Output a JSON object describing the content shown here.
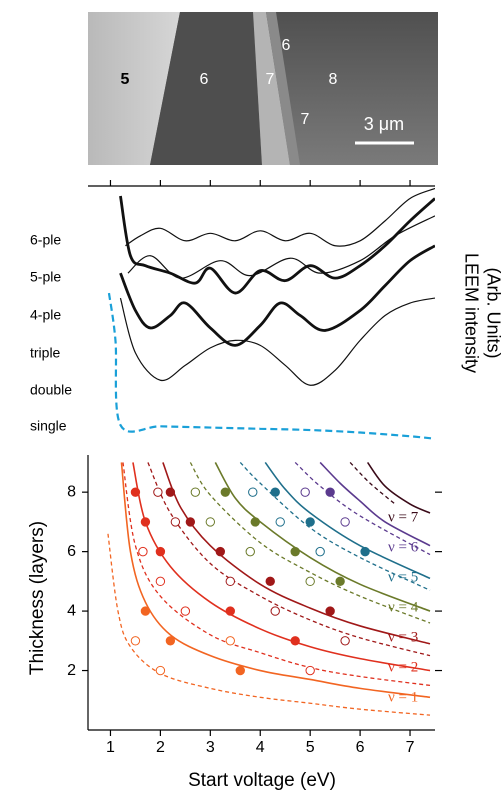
{
  "image": {
    "region_labels": [
      "5",
      "6",
      "7",
      "8",
      "6",
      "7"
    ],
    "scale_bar": "3 μm"
  },
  "chart_data": [
    {
      "type": "line",
      "ylabel": [
        "LEEM intensity",
        "(Arb. Units)"
      ],
      "xlim": [
        0.55,
        7.5
      ],
      "xticks": [
        1,
        2,
        3,
        4,
        5,
        6,
        7
      ],
      "ylim": [
        0,
        102
      ],
      "series": [
        {
          "name": "6-ple",
          "color": "#111111",
          "linewidth": 1.2,
          "linestyle": "solid",
          "x": [
            1.3,
            1.6,
            2.0,
            2.5,
            3.0,
            3.5,
            4.0,
            4.5,
            5.0,
            5.5,
            6.0,
            6.5,
            7.0,
            7.5
          ],
          "values": [
            78,
            82,
            85,
            80,
            83,
            80,
            84,
            80,
            83,
            78,
            80,
            88,
            97,
            101
          ]
        },
        {
          "name": "5-ple",
          "color": "#111111",
          "linewidth": 2.8,
          "linestyle": "solid",
          "x": [
            1.2,
            1.4,
            1.7,
            2.2,
            2.7,
            3.0,
            3.5,
            4.0,
            4.5,
            5.0,
            5.5,
            6.0,
            6.5,
            7.0,
            7.5
          ],
          "values": [
            98,
            74,
            70,
            67,
            63,
            69,
            59,
            68,
            64,
            70,
            65,
            70,
            78,
            88,
            97
          ]
        },
        {
          "name": "4-ple",
          "color": "#111111",
          "linewidth": 1.2,
          "linestyle": "solid",
          "x": [
            1.35,
            1.8,
            2.4,
            3.2,
            3.8,
            4.6,
            5.2,
            6.0,
            6.7,
            7.5
          ],
          "values": [
            67,
            74,
            65,
            72,
            66,
            73,
            67,
            72,
            82,
            90
          ]
        },
        {
          "name": "triple",
          "color": "#111111",
          "linewidth": 2.8,
          "linestyle": "solid",
          "x": [
            1.2,
            1.5,
            1.8,
            2.2,
            2.5,
            3.0,
            3.5,
            4.0,
            4.4,
            4.8,
            5.3,
            6.0,
            6.5,
            7.0,
            7.5
          ],
          "values": [
            67,
            52,
            45,
            50,
            55,
            45,
            38,
            46,
            55,
            50,
            44,
            52,
            62,
            72,
            78
          ]
        },
        {
          "name": "double",
          "color": "#111111",
          "linewidth": 1.2,
          "linestyle": "solid",
          "x": [
            1.2,
            1.5,
            2.0,
            2.5,
            3.0,
            3.5,
            4.0,
            4.5,
            5.0,
            5.5,
            6.0,
            6.5,
            7.0,
            7.5
          ],
          "values": [
            57,
            35,
            24,
            30,
            37,
            40,
            38,
            30,
            22,
            28,
            40,
            50,
            55,
            57
          ]
        },
        {
          "name": "single",
          "color": "#1aa0d8",
          "linewidth": 2.2,
          "linestyle": "dashed",
          "x": [
            0.97,
            1.1,
            1.2,
            2.0,
            3.0,
            4.0,
            5.0,
            6.0,
            7.0,
            7.5
          ],
          "values": [
            59,
            40,
            6,
            5.5,
            5,
            4.5,
            4,
            3,
            1.5,
            0.5
          ]
        }
      ]
    },
    {
      "type": "line",
      "xlabel": "Start voltage (eV)",
      "ylabel": "Thickness (layers)",
      "xlim": [
        0.55,
        7.5
      ],
      "xticks": [
        1,
        2,
        3,
        4,
        5,
        6,
        7
      ],
      "ylim": [
        0,
        9.25
      ],
      "yticks": [
        2,
        4,
        6,
        8
      ],
      "series": [
        {
          "name": "ν = 7",
          "color": "#3a0a18",
          "solid": {
            "x": [
              6.15,
              6.5,
              7.0,
              7.4
            ],
            "values": [
              9,
              8.2,
              7.6,
              7.3
            ]
          },
          "dashed": {
            "x": [
              5.8,
              6.2,
              6.7
            ],
            "values": [
              9,
              8.3,
              7.6
            ]
          },
          "filled": {
            "x": [],
            "values": []
          },
          "open": {
            "x": [],
            "values": []
          }
        },
        {
          "name": "ν = 6",
          "color": "#5b3a8e",
          "solid": {
            "x": [
              5.2,
              5.6,
              6.0,
              6.5,
              7.4
            ],
            "values": [
              9,
              8.3,
              7.7,
              7.0,
              6.2
            ]
          },
          "dashed": {
            "x": [
              4.7,
              5.2,
              6.0,
              7.4
            ],
            "values": [
              9,
              8.2,
              7.2,
              5.9
            ]
          },
          "filled": {
            "x": [
              5.4
            ],
            "values": [
              8
            ]
          },
          "open": {
            "x": [
              4.9,
              5.7
            ],
            "values": [
              8,
              7
            ]
          }
        },
        {
          "name": "ν = 5",
          "color": "#1f6f8b",
          "solid": {
            "x": [
              4.1,
              4.5,
              5.0,
              6.0,
              7.4
            ],
            "values": [
              9,
              8.1,
              7.3,
              6.2,
              5.1
            ]
          },
          "dashed": {
            "x": [
              3.6,
              4.0,
              5.0,
              6.0,
              7.4
            ],
            "values": [
              9,
              8.3,
              6.8,
              5.8,
              4.7
            ]
          },
          "filled": {
            "x": [
              4.3,
              5.0,
              6.1
            ],
            "values": [
              8,
              7,
              6
            ]
          },
          "open": {
            "x": [
              3.85,
              4.4,
              5.2
            ],
            "values": [
              8,
              7,
              6
            ]
          }
        },
        {
          "name": "ν = 4",
          "color": "#6b7a2a",
          "solid": {
            "x": [
              3.1,
              3.5,
              4.0,
              5.0,
              6.0,
              7.4
            ],
            "values": [
              9,
              7.8,
              7.0,
              5.8,
              4.9,
              4.0
            ]
          },
          "dashed": {
            "x": [
              2.6,
              3.0,
              4.0,
              5.0,
              6.0,
              7.4
            ],
            "values": [
              9,
              7.9,
              6.3,
              5.3,
              4.5,
              3.6
            ]
          },
          "filled": {
            "x": [
              3.3,
              3.9,
              4.7,
              5.6
            ],
            "values": [
              8,
              7,
              6,
              5
            ]
          },
          "open": {
            "x": [
              2.7,
              3.0,
              3.8,
              5.0
            ],
            "values": [
              8,
              7,
              6,
              5
            ]
          }
        },
        {
          "name": "ν = 3",
          "color": "#a01818",
          "solid": {
            "x": [
              2.05,
              2.4,
              3.0,
              4.0,
              5.0,
              6.0,
              7.4
            ],
            "values": [
              9,
              7.5,
              6.2,
              4.9,
              4.1,
              3.5,
              2.9
            ]
          },
          "dashed": {
            "x": [
              1.75,
              2.2,
              3.0,
              4.0,
              5.0,
              6.0,
              7.4
            ],
            "values": [
              9,
              7.3,
              5.6,
              4.5,
              3.7,
              3.1,
              2.5
            ]
          },
          "filled": {
            "x": [
              2.2,
              2.6,
              3.2,
              4.2,
              5.4
            ],
            "values": [
              8,
              7,
              6,
              5,
              4
            ]
          },
          "open": {
            "x": [
              1.95,
              2.3,
              3.4,
              4.3,
              5.7
            ],
            "values": [
              8,
              7,
              5,
              4,
              3
            ]
          }
        },
        {
          "name": "ν = 2",
          "color": "#e0301e",
          "solid": {
            "x": [
              1.45,
              1.7,
              2.2,
              3.0,
              4.0,
              5.0,
              6.0,
              7.4
            ],
            "values": [
              9,
              7,
              5.5,
              4.3,
              3.4,
              2.8,
              2.4,
              2.0
            ]
          },
          "dashed": {
            "x": [
              1.25,
              1.5,
              2.0,
              3.0,
              4.0,
              5.0,
              6.0,
              7.4
            ],
            "values": [
              9,
              6.2,
              4.5,
              3.2,
              2.6,
              2.1,
              1.8,
              1.5
            ]
          },
          "filled": {
            "x": [
              1.5,
              1.7,
              2.0,
              3.4,
              4.7
            ],
            "values": [
              8,
              7,
              6,
              4,
              3
            ]
          },
          "open": {
            "x": [
              1.65,
              2.0,
              2.5,
              5.0
            ],
            "values": [
              6,
              5,
              4,
              2
            ]
          }
        },
        {
          "name": "ν = 1",
          "color": "#f26522",
          "solid": {
            "x": [
              1.22,
              1.4,
              1.7,
              2.2,
              3.0,
              4.0,
              5.0,
              6.0,
              7.4
            ],
            "values": [
              9,
              6,
              4.3,
              3.2,
              2.5,
              2.0,
              1.7,
              1.4,
              1.1
            ]
          },
          "dashed": {
            "x": [
              0.95,
              1.15,
              1.4,
              2.0,
              3.0,
              4.0,
              5.0,
              6.0,
              7.4
            ],
            "values": [
              6.6,
              4,
              2.8,
              1.9,
              1.4,
              1.1,
              0.9,
              0.7,
              0.5
            ]
          },
          "filled": {
            "x": [
              1.7,
              2.2,
              3.6
            ],
            "values": [
              4,
              3,
              2
            ]
          },
          "open": {
            "x": [
              1.5,
              2.0,
              3.4
            ],
            "values": [
              3,
              2,
              3
            ]
          }
        }
      ]
    }
  ]
}
